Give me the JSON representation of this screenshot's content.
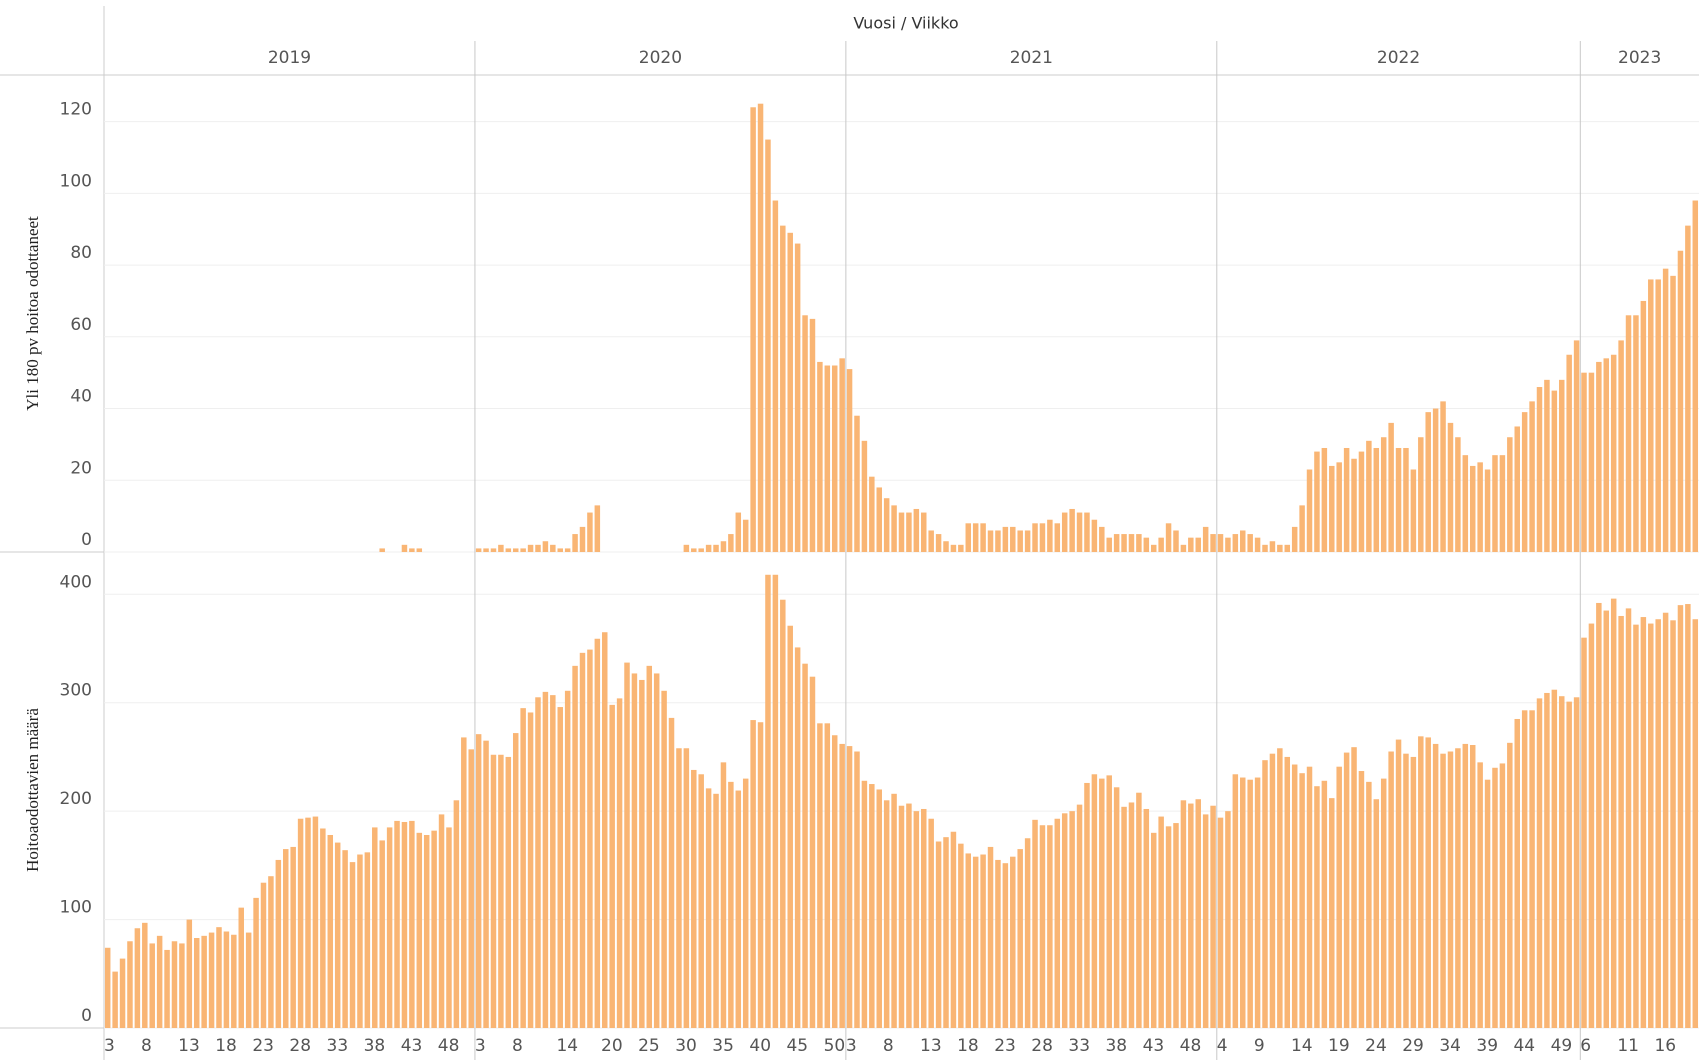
{
  "chart_data": {
    "type": "bar",
    "x_label": "Vuosi / Viikko",
    "color": "#f9b574",
    "panels": [
      {
        "y_label": "Yli 180 pv hoitoa odottaneet",
        "ylim": [
          0,
          133
        ],
        "yticks": [
          0,
          20,
          40,
          60,
          80,
          100,
          120
        ]
      },
      {
        "y_label": "Hoitoaodottavien määrä",
        "ylim": [
          0,
          439
        ],
        "yticks": [
          0,
          100,
          200,
          300,
          400
        ]
      }
    ],
    "years": [
      {
        "label": "2019",
        "categories": [
          "3",
          null,
          null,
          null,
          null,
          "8",
          null,
          null,
          null,
          null,
          "13",
          null,
          null,
          null,
          null,
          "18",
          null,
          null,
          null,
          null,
          "23",
          null,
          null,
          null,
          null,
          "28",
          null,
          null,
          null,
          null,
          "33",
          null,
          null,
          null,
          null,
          "38",
          null,
          null,
          null,
          null,
          "43",
          null,
          null,
          null,
          null,
          "48",
          null,
          null,
          null,
          null
        ],
        "series": [
          [
            0,
            0,
            0,
            0,
            0,
            0,
            0,
            0,
            0,
            0,
            0,
            0,
            0,
            0,
            0,
            0,
            0,
            0,
            0,
            0,
            0,
            0,
            0,
            0,
            0,
            0,
            0,
            0,
            0,
            0,
            0,
            0,
            0,
            0,
            0,
            0,
            0,
            1,
            0,
            0,
            2,
            1,
            1,
            0,
            0,
            0,
            0,
            0,
            0,
            0
          ],
          [
            74,
            52,
            64,
            80,
            92,
            97,
            78,
            85,
            72,
            80,
            78,
            100,
            83,
            85,
            88,
            93,
            89,
            86,
            111,
            88,
            120,
            134,
            140,
            155,
            165,
            167,
            193,
            194,
            195,
            184,
            178,
            171,
            164,
            153,
            160,
            162,
            185,
            173,
            185,
            191,
            190,
            191,
            180,
            178,
            182,
            197,
            185,
            210,
            268,
            257
          ]
        ]
      },
      {
        "label": "2020",
        "categories": [
          "3",
          null,
          null,
          null,
          null,
          "8",
          null,
          null,
          null,
          null,
          null,
          "14",
          null,
          null,
          null,
          null,
          null,
          "20",
          null,
          null,
          null,
          null,
          "25",
          null,
          null,
          null,
          null,
          "30",
          null,
          null,
          null,
          null,
          "35",
          null,
          null,
          null,
          null,
          "40",
          null,
          null,
          null,
          null,
          "45",
          null,
          null,
          null,
          null,
          "50",
          null,
          null
        ],
        "series": [
          [
            1,
            1,
            1,
            2,
            1,
            1,
            1,
            2,
            2,
            3,
            2,
            1,
            1,
            5,
            7,
            11,
            13,
            0,
            0,
            0,
            0,
            0,
            0,
            0,
            0,
            0,
            0,
            0,
            2,
            1,
            1,
            2,
            2,
            3,
            5,
            11,
            9,
            124,
            125,
            115,
            98,
            91,
            89,
            86,
            66,
            65,
            53,
            52,
            52,
            54
          ],
          [
            271,
            265,
            252,
            252,
            250,
            272,
            295,
            291,
            305,
            310,
            307,
            296,
            311,
            334,
            346,
            349,
            359,
            365,
            298,
            304,
            337,
            327,
            321,
            334,
            327,
            311,
            286,
            258,
            258,
            238,
            234,
            221,
            216,
            245,
            227,
            219,
            230,
            284,
            282,
            418,
            418,
            395,
            371,
            351,
            336,
            324,
            281,
            281,
            270,
            262
          ]
        ]
      },
      {
        "label": "2021",
        "categories": [
          "3",
          null,
          null,
          null,
          null,
          "8",
          null,
          null,
          null,
          null,
          "13",
          null,
          null,
          null,
          null,
          "18",
          null,
          null,
          null,
          null,
          "23",
          null,
          null,
          null,
          null,
          "28",
          null,
          null,
          null,
          null,
          "33",
          null,
          null,
          null,
          null,
          "38",
          null,
          null,
          null,
          null,
          "43",
          null,
          null,
          null,
          null,
          "48",
          null,
          null,
          null,
          null
        ],
        "series": [
          [
            51,
            38,
            31,
            21,
            18,
            15,
            13,
            11,
            11,
            12,
            11,
            6,
            5,
            3,
            2,
            2,
            8,
            8,
            8,
            6,
            6,
            7,
            7,
            6,
            6,
            8,
            8,
            9,
            8,
            11,
            12,
            11,
            11,
            9,
            7,
            4,
            5,
            5,
            5,
            5,
            4,
            2,
            4,
            8,
            6,
            2,
            4,
            4,
            7,
            5
          ],
          [
            260,
            255,
            228,
            225,
            220,
            210,
            216,
            205,
            207,
            200,
            202,
            193,
            172,
            176,
            181,
            170,
            161,
            158,
            160,
            167,
            155,
            152,
            158,
            165,
            175,
            192,
            187,
            187,
            193,
            198,
            200,
            206,
            226,
            234,
            230,
            233,
            222,
            204,
            208,
            217,
            202,
            180,
            195,
            186,
            189,
            210,
            207,
            211,
            197,
            205
          ]
        ]
      },
      {
        "label": "2022",
        "categories": [
          "4",
          null,
          null,
          null,
          null,
          "9",
          null,
          null,
          null,
          null,
          "14",
          null,
          null,
          null,
          null,
          "19",
          null,
          null,
          null,
          null,
          "24",
          null,
          null,
          null,
          null,
          "29",
          null,
          null,
          null,
          null,
          "34",
          null,
          null,
          null,
          null,
          "39",
          null,
          null,
          null,
          null,
          "44",
          null,
          null,
          null,
          null,
          "49",
          null,
          null,
          null
        ],
        "series": [
          [
            5,
            4,
            5,
            6,
            5,
            4,
            2,
            3,
            2,
            2,
            7,
            13,
            23,
            28,
            29,
            24,
            25,
            29,
            26,
            28,
            31,
            29,
            32,
            36,
            29,
            29,
            23,
            32,
            39,
            40,
            42,
            36,
            32,
            27,
            24,
            25,
            23,
            27,
            27,
            32,
            35,
            39,
            42,
            46,
            48,
            45,
            48,
            55,
            59
          ],
          [
            194,
            200,
            234,
            231,
            229,
            231,
            247,
            253,
            258,
            250,
            243,
            235,
            241,
            223,
            228,
            212,
            241,
            254,
            259,
            237,
            227,
            211,
            230,
            255,
            266,
            253,
            250,
            269,
            268,
            262,
            253,
            255,
            258,
            262,
            261,
            245,
            229,
            240,
            244,
            263,
            285,
            293,
            293,
            304,
            309,
            312,
            306,
            301,
            305
          ]
        ]
      },
      {
        "label": "2023",
        "categories": [
          "6",
          null,
          null,
          null,
          null,
          "11",
          null,
          null,
          null,
          null,
          "16",
          null,
          null,
          null,
          null,
          null
        ],
        "series": [
          [
            50,
            50,
            53,
            54,
            55,
            59,
            66,
            66,
            70,
            76,
            76,
            79,
            77,
            84,
            91,
            98
          ],
          [
            360,
            373,
            392,
            385,
            396,
            380,
            387,
            372,
            379,
            373,
            377,
            383,
            376,
            390,
            391,
            377
          ]
        ]
      }
    ]
  }
}
